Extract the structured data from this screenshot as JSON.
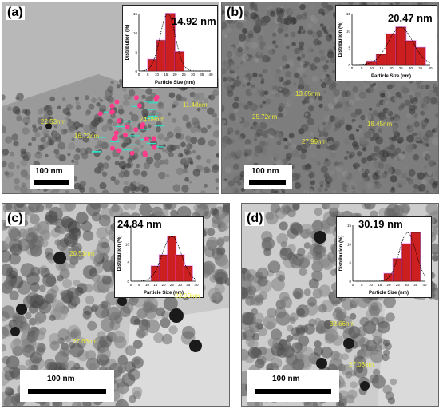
{
  "panels": [
    {
      "letter": "(a)",
      "mean_size": "14.92 nm",
      "scale_label": "100 nm",
      "measurements": [
        "22.53nm",
        "16.72nm",
        "24.09nm",
        "11.48nm"
      ],
      "chart_data": {
        "type": "bar",
        "xlabel": "Particle Size (nm)",
        "ylabel": "Distribution (%)",
        "xticks": [
          0,
          5,
          10,
          15,
          20,
          25,
          30,
          35,
          40
        ],
        "yticks": [
          0,
          5,
          10,
          15
        ],
        "x": [
          7.5,
          12.5,
          17.5,
          22.5
        ],
        "values": [
          3,
          8,
          15,
          5
        ],
        "fit_curve": true,
        "ylim": [
          0,
          15
        ],
        "xlim": [
          0,
          40
        ]
      }
    },
    {
      "letter": "(b)",
      "mean_size": "20.47 nm",
      "scale_label": "100 nm",
      "measurements": [
        "13.65nm",
        "25.72nm",
        "18.45nm",
        "27.99nm"
      ],
      "chart_data": {
        "type": "bar",
        "xlabel": "Particle Size (nm)",
        "ylabel": "Distribution (%)",
        "xticks": [
          0,
          5,
          10,
          15,
          20,
          25,
          30,
          35,
          40
        ],
        "yticks": [
          0,
          5,
          10,
          15
        ],
        "x": [
          10,
          15,
          20,
          25,
          30,
          35
        ],
        "values": [
          1,
          3,
          9,
          11,
          7,
          5
        ],
        "fit_curve": true,
        "ylim": [
          0,
          15
        ],
        "xlim": [
          0,
          40
        ]
      }
    },
    {
      "letter": "(c)",
      "mean_size": "24.84 nm",
      "scale_label": "100 nm",
      "measurements": [
        "20.51nm",
        "23.90nm",
        "27.63nm"
      ],
      "chart_data": {
        "type": "bar",
        "xlabel": "Particle Size (nm)",
        "ylabel": "Distribution (%)",
        "xticks": [
          0,
          5,
          10,
          15,
          20,
          25,
          30,
          35,
          40
        ],
        "yticks": [
          0,
          5,
          10,
          15
        ],
        "x": [
          15,
          20,
          25,
          30,
          35
        ],
        "values": [
          4,
          7,
          12,
          7,
          4
        ],
        "fit_curve": true,
        "ylim": [
          0,
          15
        ],
        "xlim": [
          0,
          40
        ]
      }
    },
    {
      "letter": "(d)",
      "mean_size": "30.19 nm",
      "scale_label": "100 nm",
      "measurements": [
        "33.66nm",
        "27.03nm"
      ],
      "chart_data": {
        "type": "bar",
        "xlabel": "Particle Size (nm)",
        "ylabel": "Distribution (%)",
        "xticks": [
          0,
          5,
          10,
          15,
          20,
          25,
          30,
          35,
          40
        ],
        "yticks": [
          0,
          5,
          10,
          15
        ],
        "x": [
          20,
          25,
          30,
          35
        ],
        "values": [
          2,
          6,
          10,
          13
        ],
        "fit_curve": true,
        "ylim": [
          0,
          15
        ],
        "xlim": [
          0,
          40
        ]
      }
    }
  ],
  "colors": {
    "bar_fill": "#cc1f1f",
    "bar_highlight": "#ff44ff",
    "bar_a": "#b21e1e",
    "measure_text": "#e8e83a",
    "tem_bg": "#8f8f8f"
  }
}
